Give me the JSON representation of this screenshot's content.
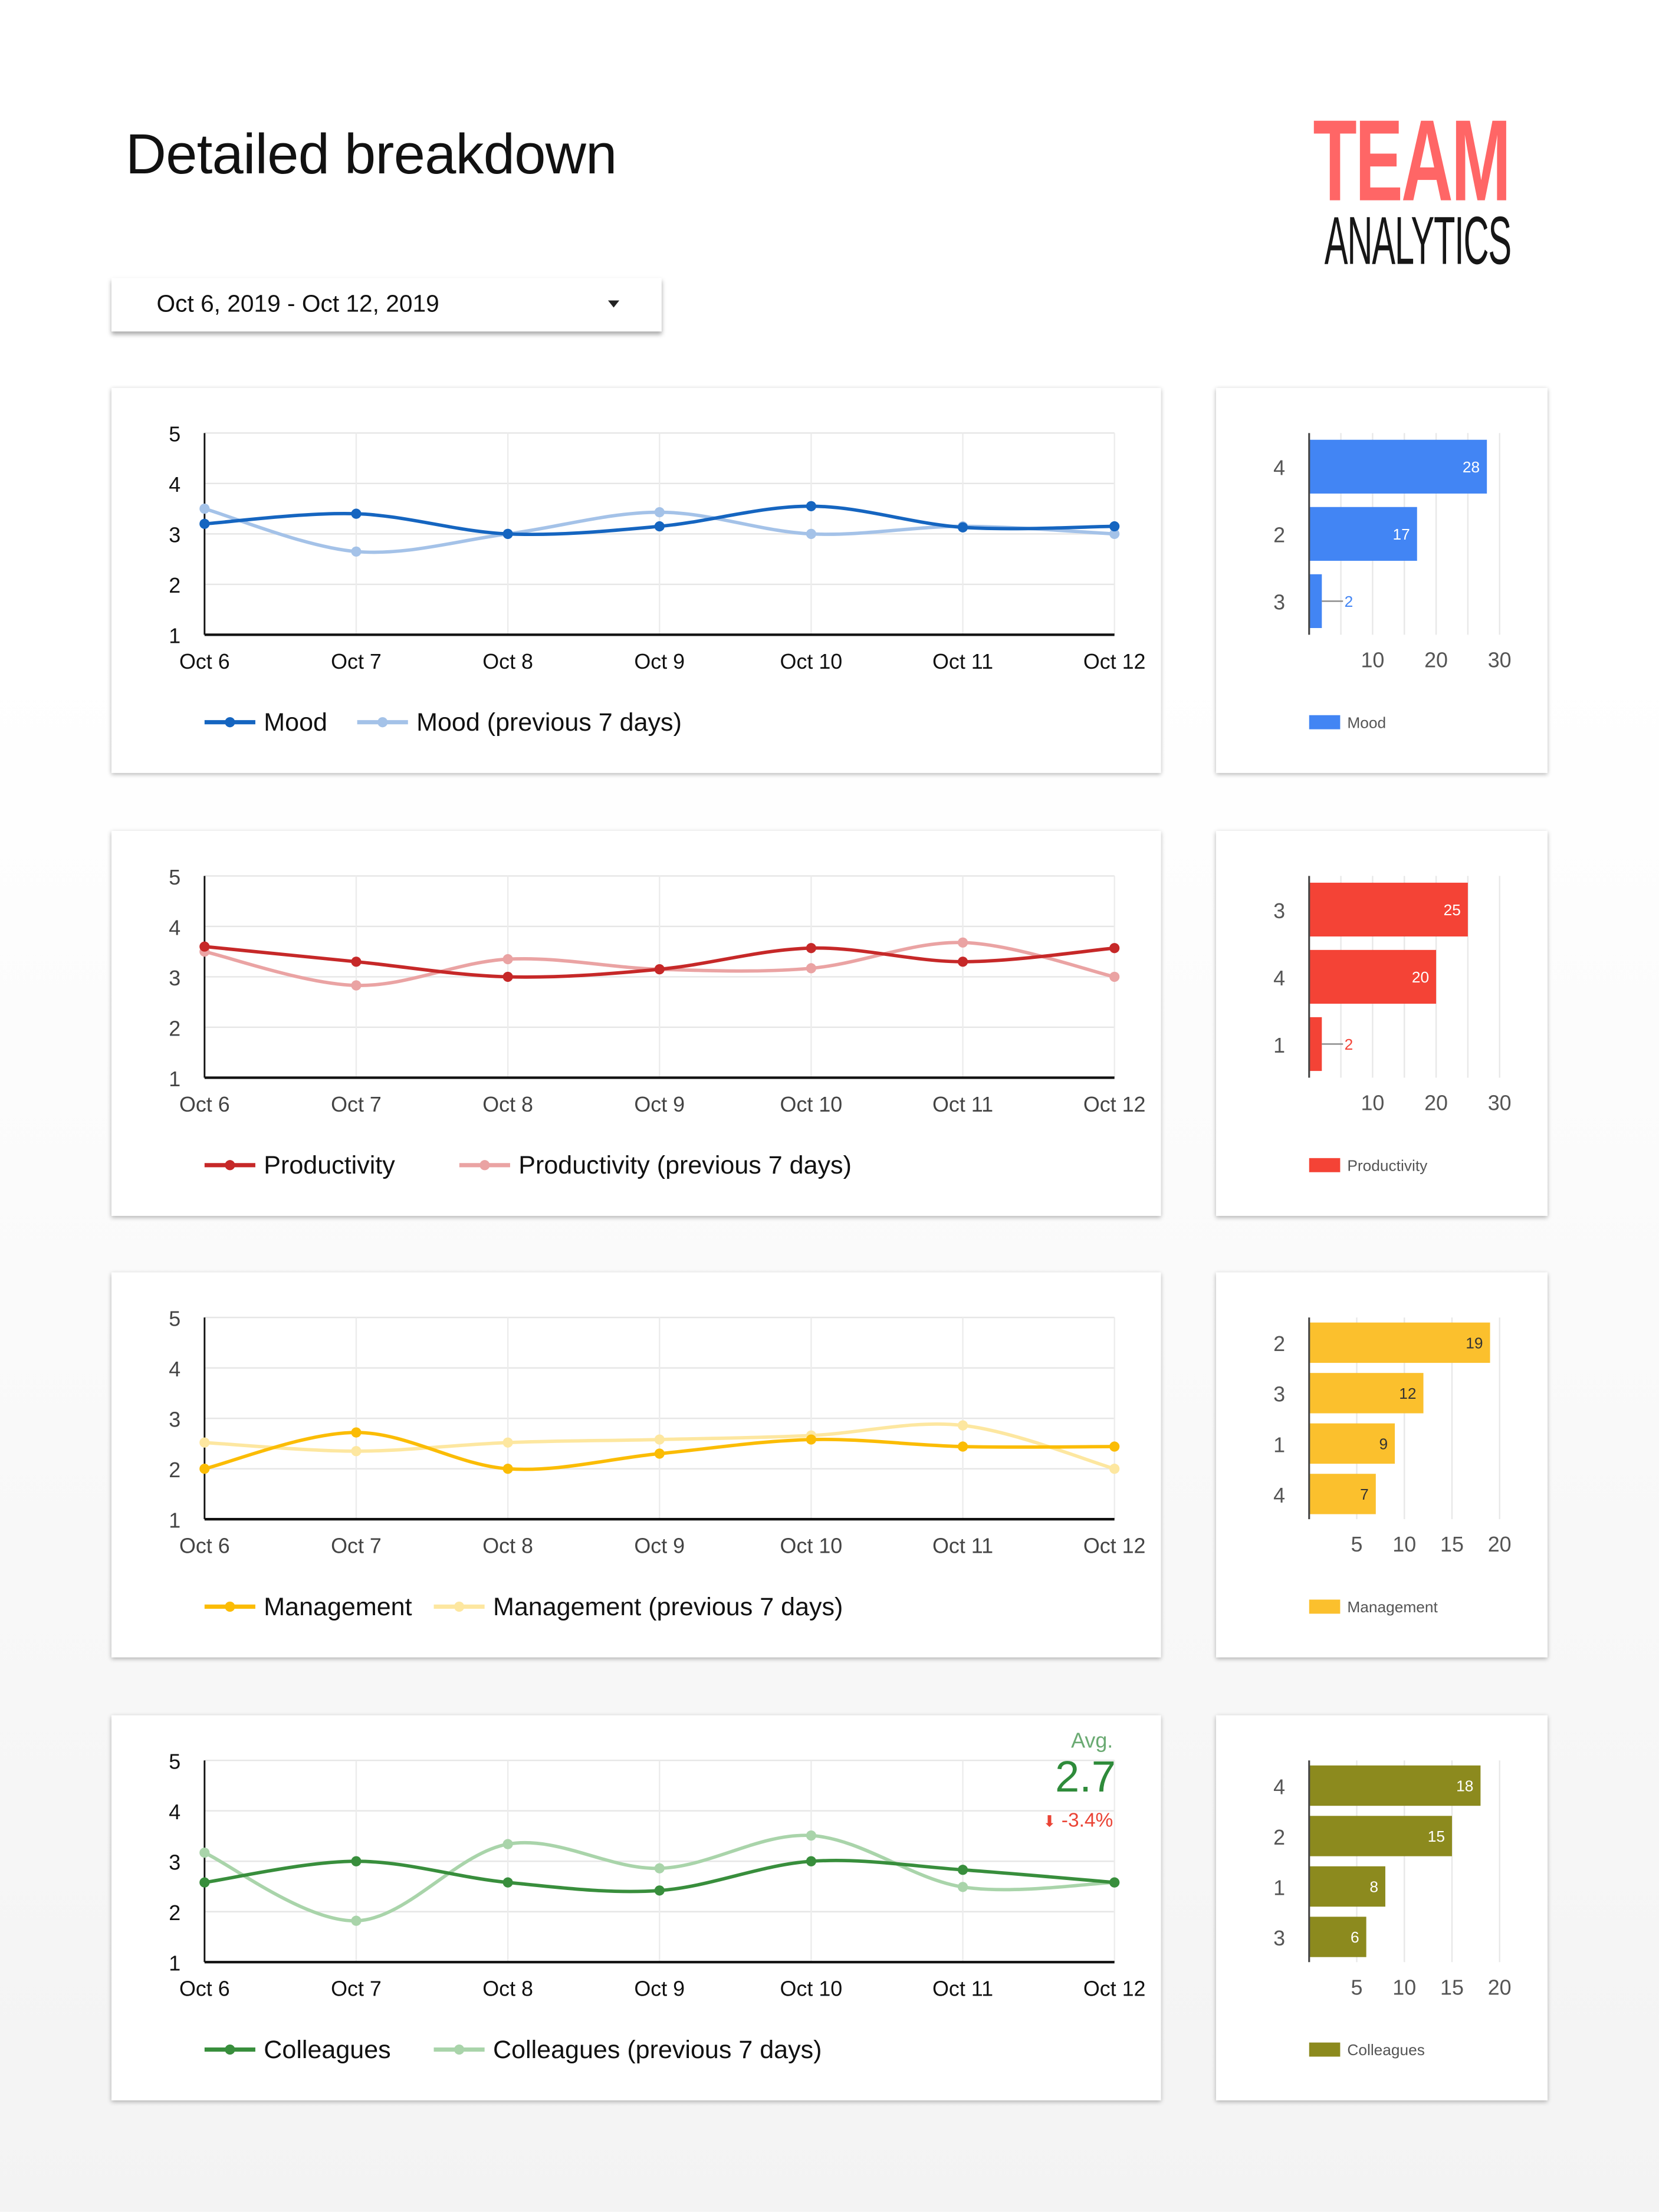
{
  "header": {
    "title": "Detailed breakdown",
    "logo_line1": "TEAM",
    "logo_line2": "ANALYTICS",
    "logo_colors": {
      "team": "#ff6666",
      "analytics": "#161616"
    }
  },
  "date_range": {
    "value": "Oct 6, 2019 - Oct 12, 2019",
    "icon": "caret-down-icon"
  },
  "chart_data": [
    {
      "type": "line",
      "categories": [
        "Oct 6",
        "Oct 7",
        "Oct 8",
        "Oct 9",
        "Oct 10",
        "Oct 11",
        "Oct 12"
      ],
      "ylim": [
        1,
        5
      ],
      "yticks": [
        "1",
        "2",
        "3",
        "4",
        "5"
      ],
      "grid": true,
      "legend": "bottom-left",
      "smooth": true,
      "series": [
        {
          "name": "Mood",
          "color": "#1565c0",
          "values": [
            3.2,
            3.4,
            3.0,
            3.15,
            3.55,
            3.13,
            3.15
          ]
        },
        {
          "name": "Mood (previous 7 days)",
          "color": "#a4c2e8",
          "values": [
            3.5,
            2.65,
            3.0,
            3.43,
            3.0,
            3.15,
            3.0
          ]
        }
      ]
    },
    {
      "type": "bar",
      "orientation": "horizontal",
      "categories": [
        "4",
        "2",
        "3"
      ],
      "values": [
        28,
        17,
        2
      ],
      "xlim": [
        0,
        30
      ],
      "xticks": [
        "10",
        "20",
        "30"
      ],
      "grid": true,
      "legend": "bottom-left",
      "series_name": "Mood",
      "color": "#4285f4",
      "label_color": "#ffffff"
    },
    {
      "type": "line",
      "categories": [
        "Oct 6",
        "Oct 7",
        "Oct 8",
        "Oct 9",
        "Oct 10",
        "Oct 11",
        "Oct 12"
      ],
      "ylim": [
        1,
        5
      ],
      "yticks": [
        "1",
        "2",
        "3",
        "4",
        "5"
      ],
      "grid": true,
      "legend": "bottom-left",
      "smooth": true,
      "series": [
        {
          "name": "Productivity",
          "color": "#c62828",
          "values": [
            3.6,
            3.3,
            3.0,
            3.15,
            3.57,
            3.3,
            3.57
          ]
        },
        {
          "name": "Productivity (previous 7 days)",
          "color": "#eaa3a3",
          "values": [
            3.5,
            2.83,
            3.35,
            3.15,
            3.17,
            3.68,
            3.0
          ]
        }
      ]
    },
    {
      "type": "bar",
      "orientation": "horizontal",
      "categories": [
        "3",
        "4",
        "1"
      ],
      "values": [
        25,
        20,
        2
      ],
      "xlim": [
        0,
        30
      ],
      "xticks": [
        "10",
        "20",
        "30"
      ],
      "grid": true,
      "legend": "bottom-left",
      "series_name": "Productivity",
      "color": "#f44336",
      "label_color": "#ffffff"
    },
    {
      "type": "line",
      "categories": [
        "Oct 6",
        "Oct 7",
        "Oct 8",
        "Oct 9",
        "Oct 10",
        "Oct 11",
        "Oct 12"
      ],
      "ylim": [
        1,
        5
      ],
      "yticks": [
        "1",
        "2",
        "3",
        "4",
        "5"
      ],
      "grid": true,
      "legend": "bottom-left",
      "smooth": true,
      "series": [
        {
          "name": "Management",
          "color": "#fbbc04",
          "values": [
            2.0,
            2.72,
            2.0,
            2.3,
            2.58,
            2.44,
            2.44
          ]
        },
        {
          "name": "Management (previous 7 days)",
          "color": "#fde7a0",
          "values": [
            2.52,
            2.35,
            2.52,
            2.58,
            2.66,
            2.86,
            2.0
          ]
        }
      ]
    },
    {
      "type": "bar",
      "orientation": "horizontal",
      "categories": [
        "2",
        "3",
        "1",
        "4"
      ],
      "values": [
        19,
        12,
        9,
        7
      ],
      "xlim": [
        0,
        20
      ],
      "xticks": [
        "5",
        "10",
        "15",
        "20"
      ],
      "grid": true,
      "legend": "bottom-left",
      "series_name": "Management",
      "color": "#fbc02d",
      "label_color": "#333333"
    },
    {
      "type": "line",
      "categories": [
        "Oct 6",
        "Oct 7",
        "Oct 8",
        "Oct 9",
        "Oct 10",
        "Oct 11",
        "Oct 12"
      ],
      "ylim": [
        1,
        5
      ],
      "yticks": [
        "1",
        "2",
        "3",
        "4",
        "5"
      ],
      "grid": true,
      "legend": "bottom-left",
      "smooth": true,
      "series": [
        {
          "name": "Colleagues",
          "color": "#388e3c",
          "values": [
            2.58,
            3.0,
            2.58,
            2.42,
            3.0,
            2.83,
            2.58
          ]
        },
        {
          "name": "Colleagues (previous 7 days)",
          "color": "#a9d4aa",
          "values": [
            3.17,
            1.82,
            3.34,
            2.86,
            3.51,
            2.49,
            2.58
          ]
        }
      ],
      "kpi": {
        "label": "Avg.",
        "value": "2.7",
        "change": "-3.4%",
        "change_icon": "arrow-down-icon"
      }
    },
    {
      "type": "bar",
      "orientation": "horizontal",
      "categories": [
        "4",
        "2",
        "1",
        "3"
      ],
      "values": [
        18,
        15,
        8,
        6
      ],
      "xlim": [
        0,
        20
      ],
      "xticks": [
        "5",
        "10",
        "15",
        "20"
      ],
      "grid": true,
      "legend": "bottom-left",
      "series_name": "Colleagues",
      "color": "#8c8a1e",
      "label_color": "#ffffff"
    }
  ]
}
